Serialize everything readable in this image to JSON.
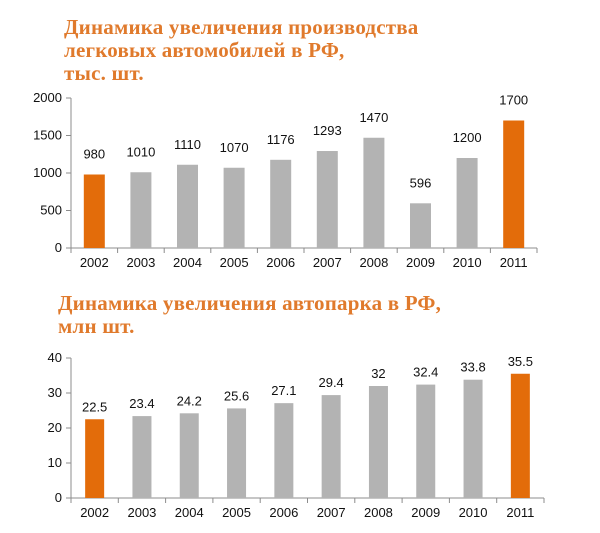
{
  "colors": {
    "highlight": "#E36C0A",
    "normal": "#B3B3B3",
    "title": "#E07A2C",
    "axis": "#8C8C8C"
  },
  "chart_data": [
    {
      "type": "bar",
      "title_lines": [
        "Динамика увеличения производства",
        "легковых автомобилей в РФ,",
        "тыс. шт."
      ],
      "categories": [
        "2002",
        "2003",
        "2004",
        "2005",
        "2006",
        "2007",
        "2008",
        "2009",
        "2010",
        "2011"
      ],
      "values": [
        980,
        1010,
        1110,
        1070,
        1176,
        1293,
        1470,
        596,
        1200,
        1700
      ],
      "labels": [
        "980",
        "1010",
        "1110",
        "1070",
        "1176",
        "1293",
        "1470",
        "596",
        "1200",
        "1700"
      ],
      "highlight": [
        "2002",
        "2011"
      ],
      "yticks": [
        "0",
        "500",
        "1000",
        "1500",
        "2000"
      ],
      "ylim": [
        0,
        2000
      ],
      "xlabel": "",
      "ylabel": "",
      "grid": false,
      "legend": "none"
    },
    {
      "type": "bar",
      "title_lines": [
        "Динамика увеличения автопарка в РФ,",
        "млн шт."
      ],
      "categories": [
        "2002",
        "2003",
        "2004",
        "2005",
        "2006",
        "2007",
        "2008",
        "2009",
        "2010",
        "2011"
      ],
      "values": [
        22.5,
        23.4,
        24.2,
        25.6,
        27.1,
        29.4,
        32,
        32.4,
        33.8,
        35.5
      ],
      "labels": [
        "22.5",
        "23.4",
        "24.2",
        "25.6",
        "27.1",
        "29.4",
        "32",
        "32.4",
        "33.8",
        "35.5"
      ],
      "highlight": [
        "2002",
        "2011"
      ],
      "yticks": [
        "0",
        "10",
        "20",
        "30",
        "40"
      ],
      "ylim": [
        0,
        40
      ],
      "xlabel": "",
      "ylabel": "",
      "grid": false,
      "legend": "none"
    }
  ]
}
